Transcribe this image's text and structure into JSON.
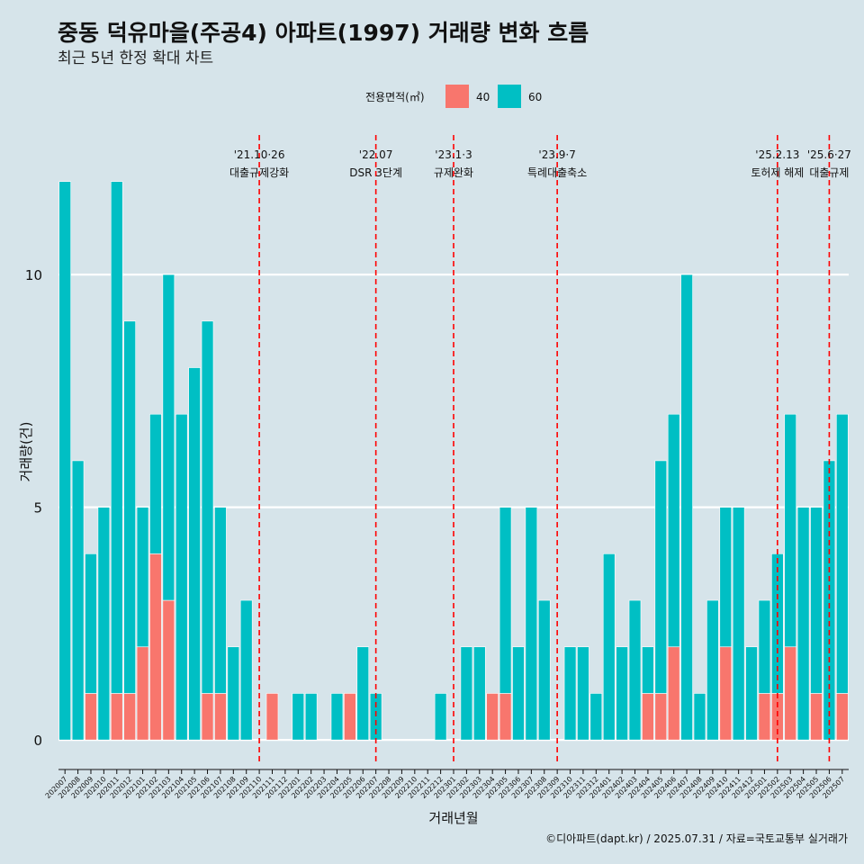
{
  "chart_data": {
    "type": "bar",
    "title": "중동 덕유마을(주공4) 아파트(1997) 거래량 변화 흐름",
    "subtitle": "최근 5년 한정 확대 차트",
    "xlabel": "거래년월",
    "ylabel": "거래량(건)",
    "caption": "©디아파트(dapt.kr) / 2025.07.31 / 자료=국토교통부 실거래가",
    "legend": {
      "title": "전용면적(㎡)",
      "position": "top"
    },
    "ylim": [
      -0.5,
      13
    ],
    "yticks": [
      0,
      5,
      10
    ],
    "grid": true,
    "categories": [
      "202007",
      "202008",
      "202009",
      "202010",
      "202011",
      "202012",
      "202101",
      "202102",
      "202103",
      "202104",
      "202105",
      "202106",
      "202107",
      "202108",
      "202109",
      "202110",
      "202111",
      "202112",
      "202201",
      "202202",
      "202203",
      "202204",
      "202205",
      "202206",
      "202207",
      "202208",
      "202209",
      "202210",
      "202211",
      "202212",
      "202301",
      "202302",
      "202303",
      "202304",
      "202305",
      "202306",
      "202307",
      "202308",
      "202309",
      "202310",
      "202311",
      "202312",
      "202401",
      "202402",
      "202403",
      "202404",
      "202405",
      "202406",
      "202407",
      "202408",
      "202409",
      "202410",
      "202411",
      "202412",
      "202501",
      "202502",
      "202503",
      "202504",
      "202505",
      "202506",
      "202507"
    ],
    "series": [
      {
        "name": "40",
        "color": "#f8766d",
        "values": [
          0,
          0,
          1,
          0,
          1,
          1,
          2,
          4,
          3,
          0,
          0,
          1,
          1,
          0,
          0,
          0,
          1,
          0,
          0,
          0,
          0,
          0,
          1,
          0,
          0,
          0,
          0,
          0,
          0,
          0,
          0,
          0,
          0,
          1,
          1,
          0,
          0,
          0,
          0,
          0,
          0,
          0,
          0,
          0,
          0,
          1,
          1,
          2,
          0,
          0,
          0,
          2,
          0,
          0,
          1,
          1,
          2,
          0,
          1,
          0,
          1
        ]
      },
      {
        "name": "60",
        "color": "#00bfc4",
        "values": [
          12,
          6,
          3,
          5,
          11,
          8,
          3,
          3,
          7,
          7,
          8,
          8,
          4,
          2,
          3,
          0,
          0,
          0,
          1,
          1,
          0,
          1,
          0,
          2,
          1,
          0,
          0,
          0,
          0,
          1,
          0,
          2,
          2,
          0,
          4,
          2,
          5,
          3,
          0,
          2,
          2,
          1,
          4,
          2,
          3,
          1,
          5,
          5,
          10,
          1,
          3,
          3,
          5,
          2,
          2,
          3,
          5,
          5,
          4,
          6,
          6
        ]
      }
    ],
    "events": [
      {
        "category": "202110",
        "line1": "'21.10·26",
        "line2": "대출규제강화"
      },
      {
        "category": "202207",
        "line1": "'22.07",
        "line2": "DSR 3단계"
      },
      {
        "category": "202301",
        "line1": "'23.1·3",
        "line2": "규제완화"
      },
      {
        "category": "202309",
        "line1": "'23.9·7",
        "line2": "특례대출축소"
      },
      {
        "category": "202502",
        "line1": "'25.2.13",
        "line2": "토허제 해제"
      },
      {
        "category": "202506",
        "line1": "'25.6·27",
        "line2": "대출규제"
      }
    ],
    "event_line_color": "#ff0000"
  }
}
